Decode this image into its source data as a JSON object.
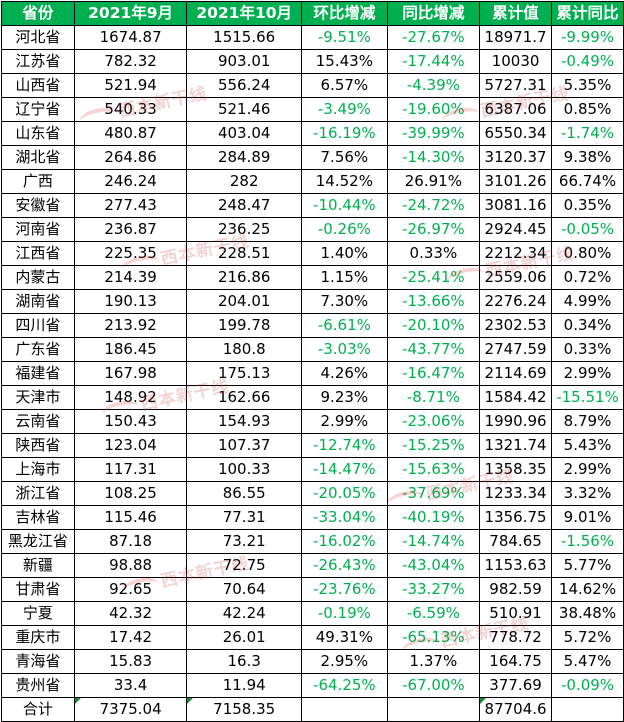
{
  "headers": [
    "省份",
    "2021年9月",
    "2021年10月",
    "环比增减",
    "同比增减",
    "累计值",
    "累计同比"
  ],
  "rows": [
    [
      "河北省",
      "1674.87",
      "1515.66",
      "-9.51%",
      "-27.67%",
      "18971.7",
      "-9.99%"
    ],
    [
      "江苏省",
      "782.32",
      "903.01",
      "15.43%",
      "-17.44%",
      "10030",
      "-0.49%"
    ],
    [
      "山西省",
      "521.94",
      "556.24",
      "6.57%",
      "-4.39%",
      "5727.31",
      "5.35%"
    ],
    [
      "辽宁省",
      "540.33",
      "521.46",
      "-3.49%",
      "-19.60%",
      "6387.06",
      "0.85%"
    ],
    [
      "山东省",
      "480.87",
      "403.04",
      "-16.19%",
      "-39.99%",
      "6550.34",
      "-1.74%"
    ],
    [
      "湖北省",
      "264.86",
      "284.89",
      "7.56%",
      "-14.30%",
      "3120.37",
      "9.38%"
    ],
    [
      "广西",
      "246.24",
      "282",
      "14.52%",
      "26.91%",
      "3101.26",
      "66.74%"
    ],
    [
      "安徽省",
      "277.43",
      "248.47",
      "-10.44%",
      "-24.72%",
      "3081.16",
      "0.35%"
    ],
    [
      "河南省",
      "236.87",
      "236.25",
      "-0.26%",
      "-26.97%",
      "2924.45",
      "-0.05%"
    ],
    [
      "江西省",
      "225.35",
      "228.51",
      "1.40%",
      "0.33%",
      "2212.34",
      "0.80%"
    ],
    [
      "内蒙古",
      "214.39",
      "216.86",
      "1.15%",
      "-25.41%",
      "2559.06",
      "0.72%"
    ],
    [
      "湖南省",
      "190.13",
      "204.01",
      "7.30%",
      "-13.66%",
      "2276.24",
      "4.99%"
    ],
    [
      "四川省",
      "213.92",
      "199.78",
      "-6.61%",
      "-20.10%",
      "2302.53",
      "0.34%"
    ],
    [
      "广东省",
      "186.45",
      "180.8",
      "-3.03%",
      "-43.77%",
      "2747.59",
      "0.33%"
    ],
    [
      "福建省",
      "167.98",
      "175.13",
      "4.26%",
      "-16.47%",
      "2114.69",
      "2.99%"
    ],
    [
      "天津市",
      "148.92",
      "162.66",
      "9.23%",
      "-8.71%",
      "1584.42",
      "-15.51%"
    ],
    [
      "云南省",
      "150.43",
      "154.93",
      "2.99%",
      "-23.06%",
      "1990.96",
      "8.79%"
    ],
    [
      "陕西省",
      "123.04",
      "107.37",
      "-12.74%",
      "-15.25%",
      "1321.74",
      "5.43%"
    ],
    [
      "上海市",
      "117.31",
      "100.33",
      "-14.47%",
      "-15.63%",
      "1358.35",
      "2.99%"
    ],
    [
      "浙江省",
      "108.25",
      "86.55",
      "-20.05%",
      "-37.69%",
      "1233.34",
      "3.32%"
    ],
    [
      "吉林省",
      "115.46",
      "77.31",
      "-33.04%",
      "-40.19%",
      "1356.75",
      "9.01%"
    ],
    [
      "黑龙江省",
      "87.18",
      "73.21",
      "-16.02%",
      "-14.74%",
      "784.65",
      "-1.56%"
    ],
    [
      "新疆",
      "98.88",
      "72.75",
      "-26.43%",
      "-43.04%",
      "1153.63",
      "5.77%"
    ],
    [
      "甘肃省",
      "92.65",
      "70.64",
      "-23.76%",
      "-33.27%",
      "982.59",
      "14.62%"
    ],
    [
      "宁夏",
      "42.32",
      "42.24",
      "-0.19%",
      "-6.59%",
      "510.91",
      "38.48%"
    ],
    [
      "重庆市",
      "17.42",
      "26.01",
      "49.31%",
      "-65.13%",
      "778.72",
      "5.72%"
    ],
    [
      "青海省",
      "15.83",
      "16.3",
      "2.95%",
      "1.37%",
      "164.75",
      "5.47%"
    ],
    [
      "贵州省",
      "33.4",
      "11.94",
      "-64.25%",
      "-67.00%",
      "377.69",
      "-0.09%"
    ],
    [
      "合计",
      "7375.04",
      "7158.35",
      "",
      "",
      "87704.6",
      ""
    ]
  ],
  "watermark_text": "西本新干线",
  "colors": {
    "header_bg": "#00b050",
    "header_text": "#ffffff",
    "negative_text": "#00b050",
    "grid": "#000000"
  }
}
